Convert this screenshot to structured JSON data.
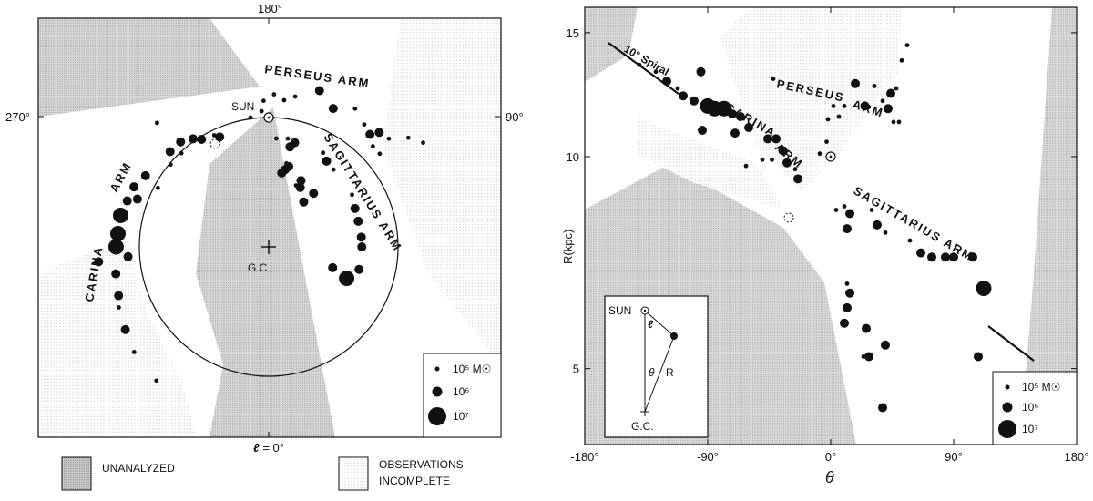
{
  "chart_data": [
    {
      "type": "scatter",
      "projection": "galactic plane map (face-on)",
      "axis_labels": {
        "top": "180°",
        "left": "270°",
        "right": "90°",
        "bottom_symbol": "ℓ",
        "bottom_value": " = 0°"
      },
      "sun_label": "SUN",
      "center_label": "G.C.",
      "arm_labels": {
        "perseus": "PERSEUS ARM",
        "sagittarius": "SAGITTARIUS ARM",
        "carina": "CARINA",
        "carina_arm": "ARM"
      },
      "legend": [
        {
          "label": "10⁵ M☉",
          "mass": 100000
        },
        {
          "label": "10⁶",
          "mass": 1000000
        },
        {
          "label": "10⁷",
          "mass": 10000000
        }
      ],
      "shading_legend": [
        {
          "label": "UNANALYZED"
        },
        {
          "label": "OBSERVATIONS",
          "label2": "INCOMPLETE"
        }
      ],
      "legend_keys": [
        "unanalyzed",
        "incomplete"
      ]
    },
    {
      "type": "scatter",
      "xlabel": "θ",
      "ylabel": "R(kpc)",
      "xlim": [
        -180,
        180
      ],
      "ylim": [
        3.9,
        16.3
      ],
      "y_scale": "log",
      "x_ticks": [
        "-180°",
        "-90°",
        "0°",
        "90°",
        "180°"
      ],
      "x_tick_values": [
        -180,
        -90,
        0,
        90,
        180
      ],
      "y_ticks": [
        "5",
        "10",
        "15"
      ],
      "y_tick_values": [
        5,
        10,
        15
      ],
      "annotations": [
        "10° Spiral",
        "PERSEUS",
        "ARM",
        "CARINA",
        "ARM",
        "SAGITTARIUS ARM"
      ],
      "sun": {
        "theta": 0,
        "R": 10
      },
      "inset": {
        "sun_label": "SUN",
        "center_label": "G.C.",
        "theta_label": "θ",
        "r_label": "R",
        "l_label": "ℓ"
      },
      "legend": [
        {
          "label": "10⁵ M☉",
          "mass": 100000
        },
        {
          "label": "10⁶",
          "mass": 1000000
        },
        {
          "label": "10⁷",
          "mass": 10000000
        }
      ],
      "points": [
        {
          "theta": -140,
          "R": 13.5,
          "mass": 100000
        },
        {
          "theta": -128,
          "R": 13.2,
          "mass": 100000
        },
        {
          "theta": -120,
          "R": 12.8,
          "mass": 1000000
        },
        {
          "theta": -112,
          "R": 12.5,
          "mass": 100000
        },
        {
          "theta": -108,
          "R": 12.2,
          "mass": 1000000
        },
        {
          "theta": -100,
          "R": 12.0,
          "mass": 1000000
        },
        {
          "theta": -95,
          "R": 13.2,
          "mass": 1000000
        },
        {
          "theta": -90,
          "R": 11.8,
          "mass": 10000000
        },
        {
          "theta": -85,
          "R": 11.7,
          "mass": 10000000
        },
        {
          "theta": -78,
          "R": 11.7,
          "mass": 10000000
        },
        {
          "theta": -72,
          "R": 11.5,
          "mass": 1000000
        },
        {
          "theta": -66,
          "R": 11.4,
          "mass": 1000000
        },
        {
          "theta": -60,
          "R": 11.0,
          "mass": 1000000
        },
        {
          "theta": -94,
          "R": 10.9,
          "mass": 1000000
        },
        {
          "theta": -70,
          "R": 10.8,
          "mass": 1000000
        },
        {
          "theta": -46,
          "R": 10.6,
          "mass": 1000000
        },
        {
          "theta": -40,
          "R": 10.6,
          "mass": 1000000
        },
        {
          "theta": -42,
          "R": 12.9,
          "mass": 100000
        },
        {
          "theta": -35,
          "R": 10.2,
          "mass": 1000000
        },
        {
          "theta": -50,
          "R": 9.9,
          "mass": 100000
        },
        {
          "theta": -43,
          "R": 9.9,
          "mass": 100000
        },
        {
          "theta": -32,
          "R": 9.8,
          "mass": 1000000
        },
        {
          "theta": -26,
          "R": 9.6,
          "mass": 100000
        },
        {
          "theta": -62,
          "R": 9.7,
          "mass": 100000
        },
        {
          "theta": -24,
          "R": 9.3,
          "mass": 1000000
        },
        {
          "theta": -8,
          "R": 10.1,
          "mass": 100000
        },
        {
          "theta": -3,
          "R": 10.5,
          "mass": 100000
        },
        {
          "theta": -2,
          "R": 11.3,
          "mass": 100000
        },
        {
          "theta": 2,
          "R": 11.8,
          "mass": 100000
        },
        {
          "theta": 6,
          "R": 11.4,
          "mass": 100000
        },
        {
          "theta": 10,
          "R": 11.8,
          "mass": 100000
        },
        {
          "theta": 18,
          "R": 12.7,
          "mass": 1000000
        },
        {
          "theta": 25,
          "R": 11.8,
          "mass": 1000000
        },
        {
          "theta": 32,
          "R": 12.6,
          "mass": 100000
        },
        {
          "theta": 38,
          "R": 12.0,
          "mass": 100000
        },
        {
          "theta": 44,
          "R": 12.3,
          "mass": 1000000
        },
        {
          "theta": 42,
          "R": 11.7,
          "mass": 1000000
        },
        {
          "theta": 46,
          "R": 11.2,
          "mass": 100000
        },
        {
          "theta": 48,
          "R": 12.5,
          "mass": 100000
        },
        {
          "theta": 52,
          "R": 13.7,
          "mass": 100000
        },
        {
          "theta": 56,
          "R": 14.4,
          "mass": 100000
        },
        {
          "theta": 50,
          "R": 11.2,
          "mass": 100000
        },
        {
          "theta": 4,
          "R": 8.4,
          "mass": 100000
        },
        {
          "theta": 10,
          "R": 8.5,
          "mass": 100000
        },
        {
          "theta": 14,
          "R": 8.3,
          "mass": 1000000
        },
        {
          "theta": 12,
          "R": 7.9,
          "mass": 1000000
        },
        {
          "theta": 30,
          "R": 8.4,
          "mass": 100000
        },
        {
          "theta": 34,
          "R": 8.0,
          "mass": 1000000
        },
        {
          "theta": 40,
          "R": 7.8,
          "mass": 100000
        },
        {
          "theta": 58,
          "R": 7.6,
          "mass": 100000
        },
        {
          "theta": 66,
          "R": 7.3,
          "mass": 1000000
        },
        {
          "theta": 74,
          "R": 7.2,
          "mass": 1000000
        },
        {
          "theta": 84,
          "R": 7.2,
          "mass": 1000000
        },
        {
          "theta": 90,
          "R": 7.2,
          "mass": 1000000
        },
        {
          "theta": 104,
          "R": 7.2,
          "mass": 1000000
        },
        {
          "theta": 112,
          "R": 6.5,
          "mass": 10000000
        },
        {
          "theta": 12,
          "R": 6.6,
          "mass": 100000
        },
        {
          "theta": 14,
          "R": 6.4,
          "mass": 1000000
        },
        {
          "theta": 12,
          "R": 6.1,
          "mass": 1000000
        },
        {
          "theta": 10,
          "R": 5.8,
          "mass": 1000000
        },
        {
          "theta": 26,
          "R": 5.7,
          "mass": 1000000
        },
        {
          "theta": 40,
          "R": 5.4,
          "mass": 1000000
        },
        {
          "theta": 24,
          "R": 5.2,
          "mass": 100000
        },
        {
          "theta": 28,
          "R": 5.2,
          "mass": 1000000
        },
        {
          "theta": 108,
          "R": 5.2,
          "mass": 1000000
        },
        {
          "theta": 38,
          "R": 4.4,
          "mass": 1000000
        }
      ]
    }
  ]
}
